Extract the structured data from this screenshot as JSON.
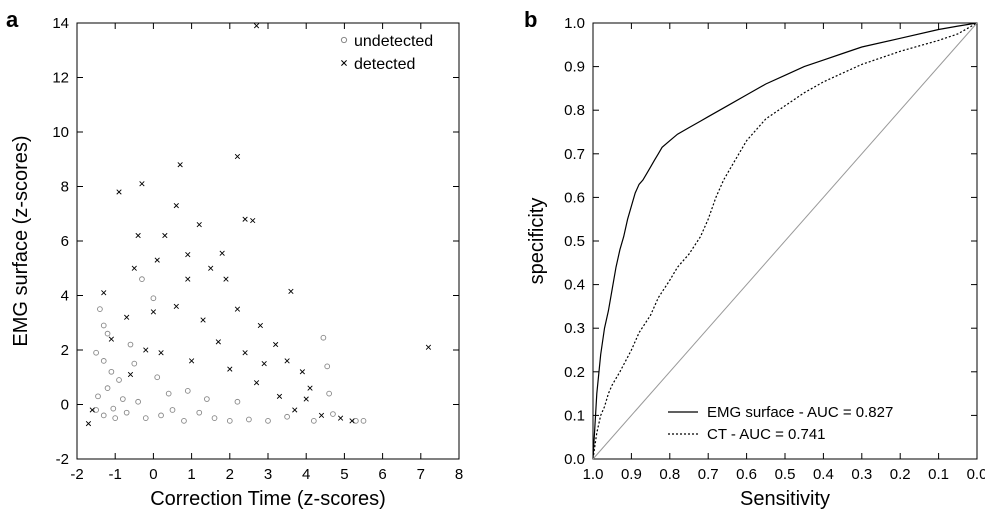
{
  "chart_data": [
    {
      "panel_label": "a",
      "type": "scatter",
      "xlabel": "Correction Time (z-scores)",
      "ylabel": "EMG surface (z-scores)",
      "xlim": [
        -2,
        8
      ],
      "ylim": [
        -2,
        14
      ],
      "xticks": [
        "-2",
        "-1",
        "0",
        "1",
        "2",
        "3",
        "4",
        "5",
        "6",
        "7",
        "8"
      ],
      "yticks": [
        "-2",
        "0",
        "2",
        "4",
        "6",
        "8",
        "10",
        "12",
        "14"
      ],
      "legend_position": "top-right",
      "series": [
        {
          "name": "undetected",
          "marker": "circle",
          "color": "#888888",
          "points": [
            [
              -1.4,
              3.5
            ],
            [
              -1.3,
              2.9
            ],
            [
              -1.2,
              2.6
            ],
            [
              -1.5,
              1.9
            ],
            [
              -1.3,
              1.6
            ],
            [
              -1.1,
              1.2
            ],
            [
              -0.9,
              0.9
            ],
            [
              -1.45,
              0.3
            ],
            [
              -1.5,
              -0.2
            ],
            [
              -1.3,
              -0.4
            ],
            [
              -1.0,
              -0.5
            ],
            [
              -0.7,
              -0.3
            ],
            [
              -0.4,
              0.1
            ],
            [
              -0.2,
              -0.5
            ],
            [
              0.2,
              -0.4
            ],
            [
              0.5,
              -0.2
            ],
            [
              0.8,
              -0.6
            ],
            [
              1.2,
              -0.3
            ],
            [
              1.6,
              -0.5
            ],
            [
              2.0,
              -0.6
            ],
            [
              2.5,
              -0.55
            ],
            [
              3.0,
              -0.6
            ],
            [
              -0.3,
              4.6
            ],
            [
              0.0,
              3.9
            ],
            [
              -0.6,
              2.2
            ],
            [
              -0.5,
              1.5
            ],
            [
              0.1,
              1.0
            ],
            [
              0.4,
              0.4
            ],
            [
              -0.8,
              0.2
            ],
            [
              -1.05,
              -0.15
            ],
            [
              0.9,
              0.5
            ],
            [
              1.4,
              0.2
            ],
            [
              2.2,
              0.1
            ],
            [
              3.5,
              -0.45
            ],
            [
              4.2,
              -0.6
            ],
            [
              4.45,
              2.45
            ],
            [
              4.55,
              1.4
            ],
            [
              4.6,
              0.4
            ],
            [
              4.7,
              -0.35
            ],
            [
              5.3,
              -0.6
            ],
            [
              5.5,
              -0.6
            ],
            [
              -1.2,
              0.6
            ]
          ]
        },
        {
          "name": "detected",
          "marker": "x",
          "color": "#000000",
          "points": [
            [
              2.7,
              13.9
            ],
            [
              7.2,
              2.1
            ],
            [
              0.7,
              8.8
            ],
            [
              2.2,
              9.1
            ],
            [
              -0.9,
              7.8
            ],
            [
              -0.3,
              8.1
            ],
            [
              0.6,
              7.3
            ],
            [
              1.2,
              6.6
            ],
            [
              2.4,
              6.8
            ],
            [
              2.6,
              6.75
            ],
            [
              -0.4,
              6.2
            ],
            [
              0.3,
              6.2
            ],
            [
              1.8,
              5.55
            ],
            [
              3.6,
              4.15
            ],
            [
              0.9,
              5.5
            ],
            [
              1.5,
              5.0
            ],
            [
              -0.5,
              5.0
            ],
            [
              0.1,
              5.3
            ],
            [
              -1.3,
              4.1
            ],
            [
              0.9,
              4.6
            ],
            [
              1.9,
              4.6
            ],
            [
              -0.7,
              3.2
            ],
            [
              0.0,
              3.4
            ],
            [
              0.6,
              3.6
            ],
            [
              1.3,
              3.1
            ],
            [
              2.2,
              3.5
            ],
            [
              2.8,
              2.9
            ],
            [
              -1.1,
              2.4
            ],
            [
              3.2,
              2.2
            ],
            [
              3.5,
              1.6
            ],
            [
              3.9,
              1.2
            ],
            [
              4.1,
              0.6
            ],
            [
              2.9,
              1.5
            ],
            [
              2.4,
              1.9
            ],
            [
              2.7,
              0.8
            ],
            [
              3.3,
              0.3
            ],
            [
              3.7,
              -0.2
            ],
            [
              4.0,
              0.2
            ],
            [
              5.2,
              -0.6
            ],
            [
              4.9,
              -0.5
            ],
            [
              4.4,
              -0.4
            ],
            [
              -1.7,
              -0.7
            ],
            [
              -1.6,
              -0.2
            ],
            [
              -0.2,
              2.0
            ],
            [
              1.7,
              2.3
            ],
            [
              2.0,
              1.3
            ],
            [
              0.2,
              1.9
            ],
            [
              -0.6,
              1.1
            ],
            [
              1.0,
              1.6
            ]
          ]
        }
      ]
    },
    {
      "panel_label": "b",
      "type": "line",
      "xlabel": "Sensitivity",
      "ylabel": "specificity",
      "xlim": [
        1.0,
        0.0
      ],
      "ylim": [
        0.0,
        1.0
      ],
      "xticks": [
        "1.0",
        "0.9",
        "0.8",
        "0.7",
        "0.6",
        "0.5",
        "0.4",
        "0.3",
        "0.2",
        "0.1",
        "0.0"
      ],
      "yticks": [
        "0.0",
        "0.1",
        "0.2",
        "0.3",
        "0.4",
        "0.5",
        "0.6",
        "0.7",
        "0.8",
        "0.9",
        "1.0"
      ],
      "legend_position": "bottom-right",
      "series": [
        {
          "name": "EMG surface - AUC = 0.827",
          "style": "solid",
          "color": "#000000",
          "x": [
            1.0,
            0.99,
            0.98,
            0.97,
            0.96,
            0.95,
            0.94,
            0.93,
            0.92,
            0.91,
            0.9,
            0.89,
            0.88,
            0.87,
            0.86,
            0.85,
            0.84,
            0.83,
            0.82,
            0.8,
            0.78,
            0.75,
            0.72,
            0.7,
            0.65,
            0.6,
            0.55,
            0.5,
            0.45,
            0.4,
            0.35,
            0.3,
            0.2,
            0.1,
            0.05,
            0.0
          ],
          "y": [
            0.0,
            0.15,
            0.24,
            0.3,
            0.34,
            0.39,
            0.44,
            0.48,
            0.51,
            0.55,
            0.58,
            0.61,
            0.63,
            0.64,
            0.655,
            0.67,
            0.685,
            0.7,
            0.715,
            0.73,
            0.745,
            0.76,
            0.775,
            0.785,
            0.81,
            0.835,
            0.86,
            0.88,
            0.9,
            0.915,
            0.93,
            0.945,
            0.965,
            0.985,
            0.993,
            1.0
          ]
        },
        {
          "name": "CT - AUC = 0.741",
          "style": "dotted",
          "color": "#000000",
          "x": [
            1.0,
            0.99,
            0.98,
            0.97,
            0.96,
            0.95,
            0.93,
            0.9,
            0.88,
            0.85,
            0.83,
            0.8,
            0.78,
            0.75,
            0.72,
            0.7,
            0.68,
            0.66,
            0.64,
            0.62,
            0.6,
            0.55,
            0.5,
            0.45,
            0.4,
            0.35,
            0.3,
            0.2,
            0.1,
            0.05,
            0.0
          ],
          "y": [
            0.0,
            0.06,
            0.1,
            0.12,
            0.15,
            0.17,
            0.2,
            0.25,
            0.29,
            0.33,
            0.37,
            0.41,
            0.44,
            0.47,
            0.51,
            0.55,
            0.6,
            0.64,
            0.67,
            0.7,
            0.73,
            0.78,
            0.81,
            0.84,
            0.865,
            0.885,
            0.905,
            0.935,
            0.96,
            0.975,
            1.0
          ]
        },
        {
          "name": "",
          "style": "reference",
          "color": "#999999",
          "x": [
            1.0,
            0.0
          ],
          "y": [
            0.0,
            1.0
          ]
        }
      ]
    }
  ]
}
